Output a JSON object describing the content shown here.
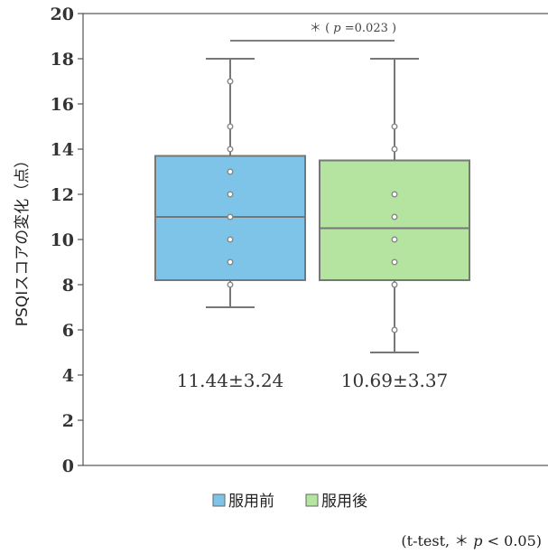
{
  "chart_data": {
    "type": "box",
    "ylabel": "PSQIスコアの変化（点）",
    "ylim": [
      0,
      20
    ],
    "yticks": [
      "0",
      "2",
      "4",
      "6",
      "8",
      "10",
      "12",
      "14",
      "16",
      "18",
      "20"
    ],
    "grid": false,
    "legend_position": "bottom",
    "series": [
      {
        "name": "服用前",
        "color": "#7dc4e8",
        "min": 7,
        "q1": 8.2,
        "median": 11,
        "q3": 13.7,
        "max": 18,
        "points": [
          8,
          9,
          10,
          11,
          12,
          13,
          14,
          15,
          17
        ],
        "summary": "11.44±3.24"
      },
      {
        "name": "服用後",
        "color": "#b5e3a0",
        "min": 5,
        "q1": 8.2,
        "median": 10.5,
        "q3": 13.5,
        "max": 18,
        "points": [
          6,
          8,
          9,
          10,
          11,
          12,
          14,
          15
        ],
        "summary": "10.69±3.37"
      }
    ],
    "significance": {
      "star": "＊",
      "p_label": "p",
      "p_text": "=0.023"
    },
    "note": {
      "open": "(t-test,  ＊",
      "p_label": "p",
      "close": " < 0.05)"
    }
  }
}
